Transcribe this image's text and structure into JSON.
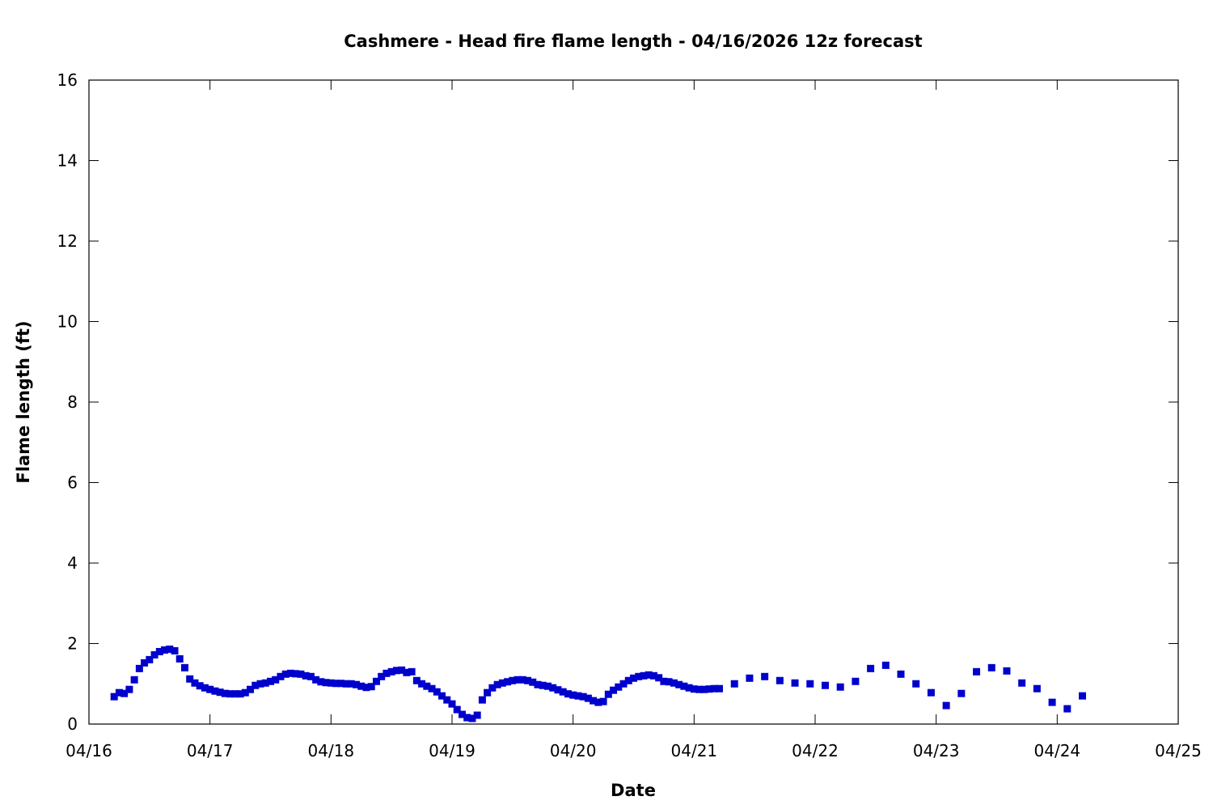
{
  "chart_data": {
    "type": "scatter",
    "title": "Cashmere - Head fire flame length - 04/16/2026 12z forecast",
    "xlabel": "Date",
    "ylabel": "Flame length (ft)",
    "x_axis": {
      "type": "date",
      "range": [
        "2026-04-16T00:00",
        "2026-04-25T00:00"
      ],
      "ticks": [
        {
          "value": "2026-04-16T00:00",
          "label": "04/16"
        },
        {
          "value": "2026-04-17T00:00",
          "label": "04/17"
        },
        {
          "value": "2026-04-18T00:00",
          "label": "04/18"
        },
        {
          "value": "2026-04-19T00:00",
          "label": "04/19"
        },
        {
          "value": "2026-04-20T00:00",
          "label": "04/20"
        },
        {
          "value": "2026-04-21T00:00",
          "label": "04/21"
        },
        {
          "value": "2026-04-22T00:00",
          "label": "04/22"
        },
        {
          "value": "2026-04-23T00:00",
          "label": "04/23"
        },
        {
          "value": "2026-04-24T00:00",
          "label": "04/24"
        },
        {
          "value": "2026-04-25T00:00",
          "label": "04/25"
        }
      ]
    },
    "y_axis": {
      "range": [
        0,
        16
      ],
      "ticks": [
        {
          "value": 0,
          "label": "0"
        },
        {
          "value": 2,
          "label": "2"
        },
        {
          "value": 4,
          "label": "4"
        },
        {
          "value": 6,
          "label": "6"
        },
        {
          "value": 8,
          "label": "8"
        },
        {
          "value": 10,
          "label": "10"
        },
        {
          "value": 12,
          "label": "12"
        },
        {
          "value": 14,
          "label": "14"
        },
        {
          "value": 16,
          "label": "16"
        }
      ]
    },
    "grid": false,
    "marker_color": "#0000cc",
    "series": [
      {
        "x": [
          "2026-04-16T05:00",
          "2026-04-16T06:00",
          "2026-04-16T07:00",
          "2026-04-16T08:00",
          "2026-04-16T09:00",
          "2026-04-16T10:00",
          "2026-04-16T11:00",
          "2026-04-16T12:00",
          "2026-04-16T13:00",
          "2026-04-16T14:00",
          "2026-04-16T15:00",
          "2026-04-16T16:00",
          "2026-04-16T17:00",
          "2026-04-16T18:00",
          "2026-04-16T19:00",
          "2026-04-16T20:00",
          "2026-04-16T21:00",
          "2026-04-16T22:00",
          "2026-04-16T23:00",
          "2026-04-17T00:00",
          "2026-04-17T01:00",
          "2026-04-17T02:00",
          "2026-04-17T03:00",
          "2026-04-17T04:00",
          "2026-04-17T05:00",
          "2026-04-17T06:00",
          "2026-04-17T07:00",
          "2026-04-17T08:00",
          "2026-04-17T09:00",
          "2026-04-17T10:00",
          "2026-04-17T11:00",
          "2026-04-17T12:00",
          "2026-04-17T13:00",
          "2026-04-17T14:00",
          "2026-04-17T15:00",
          "2026-04-17T16:00",
          "2026-04-17T17:00",
          "2026-04-17T18:00",
          "2026-04-17T19:00",
          "2026-04-17T20:00",
          "2026-04-17T21:00",
          "2026-04-17T22:00",
          "2026-04-17T23:00",
          "2026-04-18T00:00",
          "2026-04-18T01:00",
          "2026-04-18T02:00",
          "2026-04-18T03:00",
          "2026-04-18T04:00",
          "2026-04-18T05:00",
          "2026-04-18T06:00",
          "2026-04-18T07:00",
          "2026-04-18T08:00",
          "2026-04-18T09:00",
          "2026-04-18T10:00",
          "2026-04-18T11:00",
          "2026-04-18T12:00",
          "2026-04-18T13:00",
          "2026-04-18T14:00",
          "2026-04-18T15:00",
          "2026-04-18T16:00",
          "2026-04-18T17:00",
          "2026-04-18T18:00",
          "2026-04-18T19:00",
          "2026-04-18T20:00",
          "2026-04-18T21:00",
          "2026-04-18T22:00",
          "2026-04-18T23:00",
          "2026-04-19T00:00",
          "2026-04-19T01:00",
          "2026-04-19T02:00",
          "2026-04-19T03:00",
          "2026-04-19T04:00",
          "2026-04-19T05:00",
          "2026-04-19T06:00",
          "2026-04-19T07:00",
          "2026-04-19T08:00",
          "2026-04-19T09:00",
          "2026-04-19T10:00",
          "2026-04-19T11:00",
          "2026-04-19T12:00",
          "2026-04-19T13:00",
          "2026-04-19T14:00",
          "2026-04-19T15:00",
          "2026-04-19T16:00",
          "2026-04-19T17:00",
          "2026-04-19T18:00",
          "2026-04-19T19:00",
          "2026-04-19T20:00",
          "2026-04-19T21:00",
          "2026-04-19T22:00",
          "2026-04-19T23:00",
          "2026-04-20T00:00",
          "2026-04-20T01:00",
          "2026-04-20T02:00",
          "2026-04-20T03:00",
          "2026-04-20T04:00",
          "2026-04-20T05:00",
          "2026-04-20T06:00",
          "2026-04-20T07:00",
          "2026-04-20T08:00",
          "2026-04-20T09:00",
          "2026-04-20T10:00",
          "2026-04-20T11:00",
          "2026-04-20T12:00",
          "2026-04-20T13:00",
          "2026-04-20T14:00",
          "2026-04-20T15:00",
          "2026-04-20T16:00",
          "2026-04-20T17:00",
          "2026-04-20T18:00",
          "2026-04-20T19:00",
          "2026-04-20T20:00",
          "2026-04-20T21:00",
          "2026-04-20T22:00",
          "2026-04-20T23:00",
          "2026-04-21T00:00",
          "2026-04-21T01:00",
          "2026-04-21T02:00",
          "2026-04-21T03:00",
          "2026-04-21T04:00",
          "2026-04-21T05:00",
          "2026-04-21T08:00",
          "2026-04-21T11:00",
          "2026-04-21T14:00",
          "2026-04-21T17:00",
          "2026-04-21T20:00",
          "2026-04-21T23:00",
          "2026-04-22T02:00",
          "2026-04-22T05:00",
          "2026-04-22T08:00",
          "2026-04-22T11:00",
          "2026-04-22T14:00",
          "2026-04-22T17:00",
          "2026-04-22T20:00",
          "2026-04-22T23:00",
          "2026-04-23T02:00",
          "2026-04-23T05:00",
          "2026-04-23T08:00",
          "2026-04-23T11:00",
          "2026-04-23T14:00",
          "2026-04-23T17:00",
          "2026-04-23T20:00",
          "2026-04-23T23:00",
          "2026-04-24T02:00",
          "2026-04-24T05:00"
        ],
        "y": [
          0.68,
          0.78,
          0.76,
          0.86,
          1.1,
          1.38,
          1.52,
          1.6,
          1.72,
          1.8,
          1.84,
          1.86,
          1.82,
          1.62,
          1.4,
          1.12,
          1.02,
          0.95,
          0.9,
          0.86,
          0.82,
          0.79,
          0.76,
          0.75,
          0.75,
          0.75,
          0.78,
          0.86,
          0.96,
          1.0,
          1.02,
          1.06,
          1.1,
          1.18,
          1.24,
          1.26,
          1.25,
          1.24,
          1.2,
          1.18,
          1.1,
          1.05,
          1.03,
          1.02,
          1.01,
          1.01,
          1.0,
          1.0,
          0.98,
          0.94,
          0.91,
          0.93,
          1.06,
          1.18,
          1.26,
          1.3,
          1.33,
          1.34,
          1.28,
          1.3,
          1.08,
          1.0,
          0.94,
          0.88,
          0.8,
          0.7,
          0.6,
          0.5,
          0.36,
          0.24,
          0.16,
          0.14,
          0.22,
          0.6,
          0.78,
          0.9,
          0.98,
          1.02,
          1.05,
          1.08,
          1.1,
          1.1,
          1.08,
          1.04,
          0.98,
          0.96,
          0.94,
          0.9,
          0.85,
          0.8,
          0.75,
          0.72,
          0.7,
          0.68,
          0.64,
          0.58,
          0.54,
          0.56,
          0.74,
          0.84,
          0.92,
          1.0,
          1.08,
          1.14,
          1.18,
          1.2,
          1.22,
          1.2,
          1.15,
          1.06,
          1.05,
          1.02,
          0.98,
          0.94,
          0.9,
          0.87,
          0.86,
          0.86,
          0.87,
          0.88,
          0.88,
          1.0,
          1.14,
          1.18,
          1.08,
          1.02,
          1.0,
          0.96,
          0.92,
          1.06,
          1.38,
          1.46,
          1.24,
          1.0,
          0.78,
          0.46,
          0.76,
          1.3,
          1.4,
          1.32,
          1.02,
          0.88,
          0.54,
          0.38,
          0.7
        ]
      }
    ]
  }
}
